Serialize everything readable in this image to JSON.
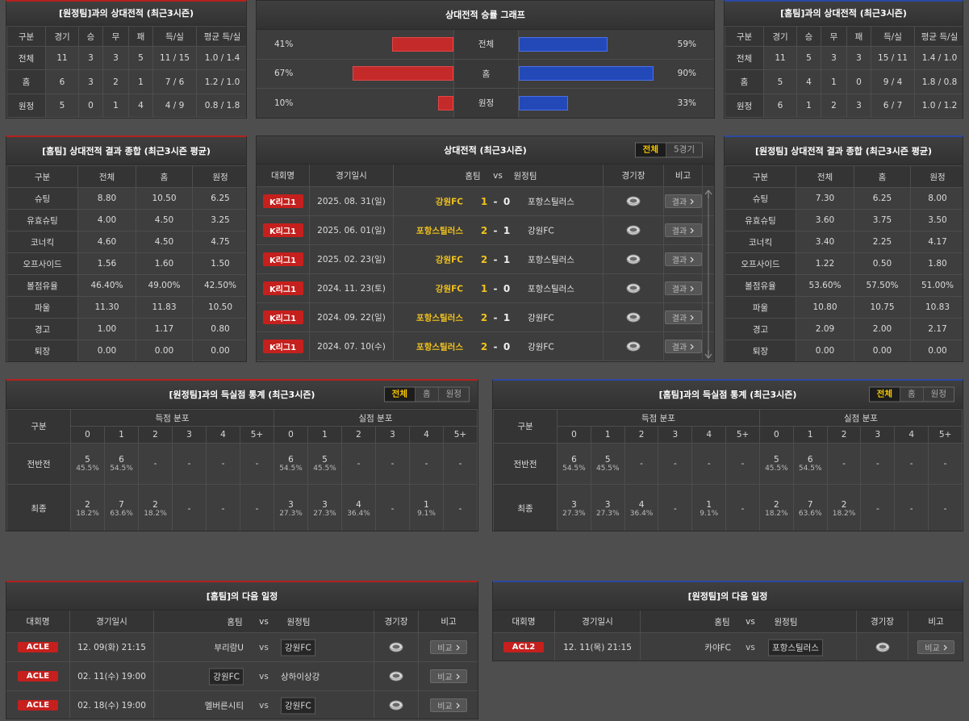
{
  "h2h_away": {
    "title": "[원정팀]과의 상대전적 (최근3시즌)",
    "columns": [
      "구분",
      "경기",
      "승",
      "무",
      "패",
      "득/실",
      "평균 득/실"
    ],
    "rows": [
      [
        "전체",
        "11",
        "3",
        "3",
        "5",
        "11 / 15",
        "1.0 / 1.4"
      ],
      [
        "홈",
        "6",
        "3",
        "2",
        "1",
        "7 / 6",
        "1.2 / 1.0"
      ],
      [
        "원정",
        "5",
        "0",
        "1",
        "4",
        "4 / 9",
        "0.8 / 1.8"
      ]
    ]
  },
  "win_graph": {
    "title": "상대전적 승률 그래프",
    "home_color": "#c42a2a",
    "away_color": "#2349b8",
    "rows": [
      {
        "label": "전체",
        "home": 41,
        "home_label": "41%",
        "away": 59,
        "away_label": "59%"
      },
      {
        "label": "홈",
        "home": 67,
        "home_label": "67%",
        "away": 90,
        "away_label": "90%"
      },
      {
        "label": "원정",
        "home": 10,
        "home_label": "10%",
        "away": 33,
        "away_label": "33%"
      }
    ]
  },
  "h2h_home": {
    "title": "[홈팀]과의 상대전적 (최근3시즌)",
    "columns": [
      "구분",
      "경기",
      "승",
      "무",
      "패",
      "득/실",
      "평균 득/실"
    ],
    "rows": [
      [
        "전체",
        "11",
        "5",
        "3",
        "3",
        "15 / 11",
        "1.4 / 1.0"
      ],
      [
        "홈",
        "5",
        "4",
        "1",
        "0",
        "9 / 4",
        "1.8 / 0.8"
      ],
      [
        "원정",
        "6",
        "1",
        "2",
        "3",
        "6 / 7",
        "1.0 / 1.2"
      ]
    ]
  },
  "home_summary": {
    "title": "[홈팀] 상대전적 결과 종합 (최근3시즌 평균)",
    "columns": [
      "구분",
      "전체",
      "홈",
      "원정"
    ],
    "rows": [
      [
        "슈팅",
        "8.80",
        "10.50",
        "6.25"
      ],
      [
        "유효슈팅",
        "4.00",
        "4.50",
        "3.25"
      ],
      [
        "코너킥",
        "4.60",
        "4.50",
        "4.75"
      ],
      [
        "오프사이드",
        "1.56",
        "1.60",
        "1.50"
      ],
      [
        "볼점유율",
        "46.40%",
        "49.00%",
        "42.50%"
      ],
      [
        "파울",
        "11.30",
        "11.83",
        "10.50"
      ],
      [
        "경고",
        "1.00",
        "1.17",
        "0.80"
      ],
      [
        "퇴장",
        "0.00",
        "0.00",
        "0.00"
      ]
    ]
  },
  "matches": {
    "title": "상대전적 (최근3시즌)",
    "tabs": [
      {
        "label": "전체",
        "active": true
      },
      {
        "label": "5경기",
        "active": false
      }
    ],
    "columns": [
      "대회명",
      "경기일시",
      "홈팀",
      "vs",
      "원정팀",
      "경기장",
      "비고"
    ],
    "rows": [
      {
        "league": "K리그1",
        "date": "2025. 08. 31(일)",
        "home": "강원FC",
        "home_score": "1",
        "sep": "-",
        "away_score": "0",
        "away": "포항스틸러스",
        "button": "결과"
      },
      {
        "league": "K리그1",
        "date": "2025. 06. 01(일)",
        "home": "포항스틸러스",
        "home_score": "2",
        "sep": "-",
        "away_score": "1",
        "away": "강원FC",
        "button": "결과"
      },
      {
        "league": "K리그1",
        "date": "2025. 02. 23(일)",
        "home": "강원FC",
        "home_score": "2",
        "sep": "-",
        "away_score": "1",
        "away": "포항스틸러스",
        "button": "결과"
      },
      {
        "league": "K리그1",
        "date": "2024. 11. 23(토)",
        "home": "강원FC",
        "home_score": "1",
        "sep": "-",
        "away_score": "0",
        "away": "포항스틸러스",
        "button": "결과"
      },
      {
        "league": "K리그1",
        "date": "2024. 09. 22(일)",
        "home": "포항스틸러스",
        "home_score": "2",
        "sep": "-",
        "away_score": "1",
        "away": "강원FC",
        "button": "결과"
      },
      {
        "league": "K리그1",
        "date": "2024. 07. 10(수)",
        "home": "포항스틸러스",
        "home_score": "2",
        "sep": "-",
        "away_score": "0",
        "away": "강원FC",
        "button": "결과"
      }
    ]
  },
  "away_summary": {
    "title": "[원정팀] 상대전적 결과 종합 (최근3시즌 평균)",
    "columns": [
      "구분",
      "전체",
      "홈",
      "원정"
    ],
    "rows": [
      [
        "슈팅",
        "7.30",
        "6.25",
        "8.00"
      ],
      [
        "유효슈팅",
        "3.60",
        "3.75",
        "3.50"
      ],
      [
        "코너킥",
        "3.40",
        "2.25",
        "4.17"
      ],
      [
        "오프사이드",
        "1.22",
        "0.50",
        "1.80"
      ],
      [
        "볼점유율",
        "53.60%",
        "57.50%",
        "51.00%"
      ],
      [
        "파울",
        "10.80",
        "10.75",
        "10.83"
      ],
      [
        "경고",
        "2.09",
        "2.00",
        "2.17"
      ],
      [
        "퇴장",
        "0.00",
        "0.00",
        "0.00"
      ]
    ]
  },
  "goal_stats_away": {
    "title": "[원정팀]과의 득실점 통계 (최근3시즌)",
    "tabs": [
      {
        "label": "전체",
        "active": true
      },
      {
        "label": "홈",
        "active": false
      },
      {
        "label": "원정",
        "active": false
      }
    ],
    "header": {
      "category": "구분",
      "scored": "득점 분포",
      "conceded": "실점 분포",
      "bins": [
        "0",
        "1",
        "2",
        "3",
        "4",
        "5+"
      ]
    },
    "rows": [
      {
        "label": "전반전",
        "scored": [
          {
            "count": "5",
            "pct": "45.5%"
          },
          {
            "count": "6",
            "pct": "54.5%"
          },
          "-",
          "-",
          "-",
          "-"
        ],
        "conceded": [
          {
            "count": "6",
            "pct": "54.5%"
          },
          {
            "count": "5",
            "pct": "45.5%"
          },
          "-",
          "-",
          "-",
          "-"
        ]
      },
      {
        "label": "최종",
        "scored": [
          {
            "count": "2",
            "pct": "18.2%"
          },
          {
            "count": "7",
            "pct": "63.6%"
          },
          {
            "count": "2",
            "pct": "18.2%"
          },
          "-",
          "-",
          "-"
        ],
        "conceded": [
          {
            "count": "3",
            "pct": "27.3%"
          },
          {
            "count": "3",
            "pct": "27.3%"
          },
          {
            "count": "4",
            "pct": "36.4%"
          },
          "-",
          {
            "count": "1",
            "pct": "9.1%"
          },
          "-"
        ]
      }
    ]
  },
  "goal_stats_home": {
    "title": "[홈팀]과의 득실점 통계 (최근3시즌)",
    "tabs": [
      {
        "label": "전체",
        "active": true
      },
      {
        "label": "홈",
        "active": false
      },
      {
        "label": "원정",
        "active": false
      }
    ],
    "header": {
      "category": "구분",
      "scored": "득점 분포",
      "conceded": "실점 분포",
      "bins": [
        "0",
        "1",
        "2",
        "3",
        "4",
        "5+"
      ]
    },
    "rows": [
      {
        "label": "전반전",
        "scored": [
          {
            "count": "6",
            "pct": "54.5%"
          },
          {
            "count": "5",
            "pct": "45.5%"
          },
          "-",
          "-",
          "-",
          "-"
        ],
        "conceded": [
          {
            "count": "5",
            "pct": "45.5%"
          },
          {
            "count": "6",
            "pct": "54.5%"
          },
          "-",
          "-",
          "-",
          "-"
        ]
      },
      {
        "label": "최종",
        "scored": [
          {
            "count": "3",
            "pct": "27.3%"
          },
          {
            "count": "3",
            "pct": "27.3%"
          },
          {
            "count": "4",
            "pct": "36.4%"
          },
          "-",
          {
            "count": "1",
            "pct": "9.1%"
          },
          "-"
        ],
        "conceded": [
          {
            "count": "2",
            "pct": "18.2%"
          },
          {
            "count": "7",
            "pct": "63.6%"
          },
          {
            "count": "2",
            "pct": "18.2%"
          },
          "-",
          "-",
          "-"
        ]
      }
    ]
  },
  "schedule_home": {
    "title": "[홈팀]의 다음 일정",
    "columns": [
      "대회명",
      "경기일시",
      "홈팀",
      "vs",
      "원정팀",
      "경기장",
      "비고"
    ],
    "rows": [
      {
        "league": "ACLE",
        "date": "12. 09(화) 21:15",
        "home": "부리람U",
        "vs": "vs",
        "away": "강원FC",
        "focus": "away",
        "button": "비교"
      },
      {
        "league": "ACLE",
        "date": "02. 11(수) 19:00",
        "home": "강원FC",
        "vs": "vs",
        "away": "상하이상강",
        "focus": "home",
        "button": "비교"
      },
      {
        "league": "ACLE",
        "date": "02. 18(수) 19:00",
        "home": "멜버른시티",
        "vs": "vs",
        "away": "강원FC",
        "focus": "away",
        "button": "비교"
      }
    ]
  },
  "schedule_away": {
    "title": "[원정팀]의 다음 일정",
    "columns": [
      "대회명",
      "경기일시",
      "홈팀",
      "vs",
      "원정팀",
      "경기장",
      "비고"
    ],
    "rows": [
      {
        "league": "ACL2",
        "date": "12. 11(목) 21:15",
        "home": "카야FC",
        "vs": "vs",
        "away": "포항스틸러스",
        "focus": "away",
        "button": "비교"
      }
    ]
  }
}
